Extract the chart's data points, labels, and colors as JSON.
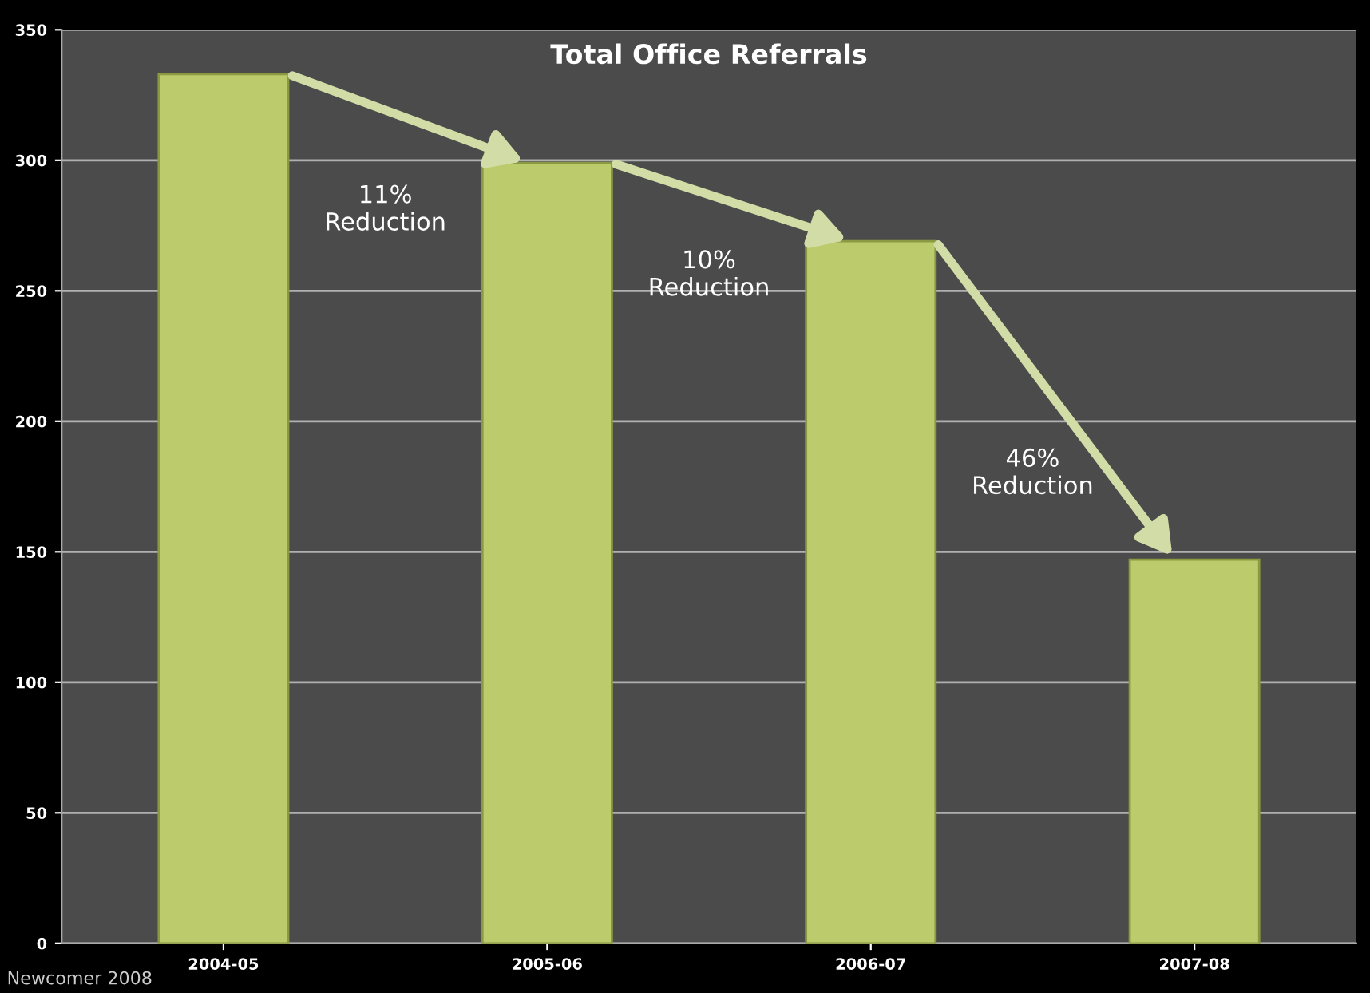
{
  "chart_data": {
    "type": "bar",
    "title": "Total Office Referrals",
    "categories": [
      "2004-05",
      "2005-06",
      "2006-07",
      "2007-08"
    ],
    "values": [
      333,
      299,
      269,
      147
    ],
    "color": "#bccb6c",
    "ylim": [
      0,
      350
    ],
    "yticks": [
      0,
      50,
      100,
      150,
      200,
      250,
      300,
      350
    ],
    "grid": "y",
    "annotations": [
      "11%\nReduction",
      "10%\nReduction",
      "46%\nReduction",
      "Newcomer 2008"
    ]
  }
}
